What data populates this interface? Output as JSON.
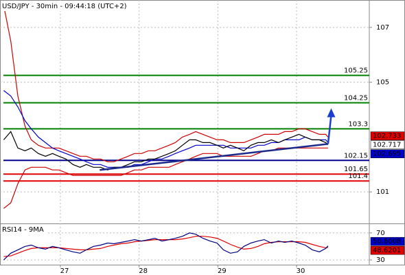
{
  "chart_data": [
    {
      "type": "line",
      "title": "USD/JPY - 30min - 09:44:18 (UTC+2)",
      "x": [
        26.28,
        26.37,
        26.46,
        26.55,
        26.63,
        26.72,
        26.81,
        26.9,
        26.98,
        27.07,
        27.16,
        27.25,
        27.33,
        27.42,
        27.51,
        27.6,
        27.68,
        27.77,
        27.86,
        27.94,
        28.03,
        28.12,
        28.2,
        28.29,
        28.38,
        28.46,
        28.55,
        28.64,
        28.72,
        28.81,
        28.9,
        28.99,
        29.07,
        29.16,
        29.25,
        29.33,
        29.42,
        29.51,
        29.59,
        29.68,
        29.77,
        29.85,
        29.94,
        30.03,
        30.11,
        30.2,
        30.29,
        30.37,
        30.4
      ],
      "series": [
        {
          "color": "#cc0000",
          "values": [
            107.8,
            106.5,
            104.5,
            103.4,
            102.9,
            102.7,
            102.6,
            102.6,
            102.6,
            102.5,
            102.4,
            102.3,
            102.3,
            102.2,
            102.2,
            102.1,
            102.1,
            102.2,
            102.3,
            102.4,
            102.4,
            102.5,
            102.5,
            102.6,
            102.7,
            102.8,
            103.0,
            103.1,
            103.2,
            103.1,
            103.0,
            102.9,
            102.9,
            102.8,
            102.8,
            102.8,
            102.9,
            103.0,
            103.1,
            103.1,
            103.1,
            103.2,
            103.2,
            103.3,
            103.3,
            103.2,
            103.1,
            103.1,
            103.0
          ]
        },
        {
          "color": "#cc0000",
          "values": [
            100.4,
            100.6,
            101.3,
            101.8,
            101.9,
            101.9,
            101.9,
            101.8,
            101.8,
            101.7,
            101.6,
            101.6,
            101.6,
            101.6,
            101.6,
            101.6,
            101.6,
            101.6,
            101.7,
            101.8,
            101.8,
            101.9,
            101.9,
            101.9,
            101.9,
            102.0,
            102.1,
            102.2,
            102.3,
            102.4,
            102.4,
            102.4,
            102.3,
            102.3,
            102.3,
            102.3,
            102.3,
            102.4,
            102.5,
            102.5,
            102.6,
            102.6,
            102.6,
            102.6,
            102.6,
            102.6,
            102.6,
            102.6,
            102.6
          ]
        },
        {
          "color": "#0000cc",
          "values": [
            104.7,
            104.5,
            104.1,
            103.6,
            103.3,
            103.0,
            102.8,
            102.6,
            102.5,
            102.4,
            102.3,
            102.2,
            102.1,
            102.0,
            102.0,
            101.9,
            101.9,
            101.9,
            101.9,
            102.0,
            102.0,
            102.1,
            102.2,
            102.2,
            102.3,
            102.4,
            102.5,
            102.6,
            102.7,
            102.7,
            102.7,
            102.7,
            102.7,
            102.6,
            102.6,
            102.6,
            102.6,
            102.7,
            102.7,
            102.8,
            102.8,
            102.9,
            102.9,
            102.9,
            103.0,
            102.9,
            102.9,
            102.9,
            102.8
          ]
        },
        {
          "color": "#000000",
          "values": [
            102.9,
            103.2,
            102.6,
            102.5,
            102.6,
            102.4,
            102.3,
            102.4,
            102.3,
            102.2,
            102.0,
            101.9,
            102.0,
            101.9,
            101.9,
            101.8,
            101.9,
            101.9,
            102.0,
            102.1,
            102.1,
            102.2,
            102.2,
            102.3,
            102.4,
            102.5,
            102.7,
            102.9,
            102.9,
            102.8,
            102.8,
            102.7,
            102.6,
            102.7,
            102.6,
            102.5,
            102.7,
            102.8,
            102.8,
            102.9,
            102.8,
            102.9,
            103.0,
            103.1,
            103.0,
            102.9,
            102.9,
            102.8,
            102.72
          ]
        }
      ],
      "xlim": [
        26.233,
        30.924
      ],
      "xticks": [
        27,
        28,
        29,
        30
      ],
      "ylim": [
        99.85,
        108
      ],
      "yticks": [
        101,
        105,
        107
      ],
      "grid": true,
      "levels": [
        {
          "value": 105.25,
          "color": "#008000"
        },
        {
          "value": 104.25,
          "color": "#008000"
        },
        {
          "value": 103.3,
          "color": "#008000"
        },
        {
          "value": 102.15,
          "color": "#00008b"
        },
        {
          "value": 101.65,
          "color": "#e00000"
        },
        {
          "value": 101.4,
          "color": "#e00000"
        }
      ],
      "trendlines": [
        {
          "x": [
            27.5,
            30.4
          ],
          "y": [
            101.8,
            102.75
          ],
          "color": "#1c2a8c"
        }
      ],
      "arrows": [
        {
          "x": [
            30.4,
            30.44
          ],
          "y": [
            102.75,
            104.05
          ],
          "color": "#1a3fcf"
        }
      ],
      "tags": [
        {
          "value": 102.733,
          "color": "#e00000",
          "text_color": "#5a0000"
        },
        {
          "value": 102.717,
          "color": "#ffffff",
          "text_color": "#000000"
        },
        {
          "value": 102.695,
          "color": "#0000cc",
          "text_color": "#ffffff"
        }
      ]
    },
    {
      "type": "line",
      "title": "RSI14 - 9MA",
      "x": [
        26.28,
        26.37,
        26.46,
        26.55,
        26.63,
        26.72,
        26.81,
        26.9,
        26.98,
        27.07,
        27.16,
        27.25,
        27.33,
        27.42,
        27.51,
        27.6,
        27.68,
        27.77,
        27.86,
        27.94,
        28.03,
        28.12,
        28.2,
        28.29,
        28.38,
        28.46,
        28.55,
        28.64,
        28.72,
        28.81,
        28.9,
        28.99,
        29.07,
        29.16,
        29.25,
        29.33,
        29.42,
        29.51,
        29.59,
        29.68,
        29.77,
        29.85,
        29.94,
        30.03,
        30.11,
        30.2,
        30.29,
        30.37,
        30.4
      ],
      "series": [
        {
          "color": "#e00000",
          "values": [
            35,
            36,
            40,
            44,
            47,
            48,
            48,
            48,
            48,
            47,
            46,
            45,
            45,
            46,
            47,
            50,
            52,
            54,
            55,
            57,
            58,
            59,
            60,
            60,
            60,
            60,
            61,
            63,
            65,
            65,
            64,
            62,
            58,
            53,
            49,
            46,
            47,
            50,
            54,
            56,
            57,
            57,
            57,
            57,
            56,
            53,
            50,
            48,
            48.6201
          ]
        },
        {
          "color": "#000080",
          "values": [
            30,
            40,
            45,
            50,
            52,
            48,
            46,
            50,
            48,
            45,
            42,
            40,
            45,
            50,
            52,
            55,
            54,
            56,
            58,
            60,
            58,
            60,
            62,
            58,
            60,
            62,
            65,
            70,
            68,
            62,
            58,
            55,
            45,
            40,
            42,
            50,
            55,
            58,
            60,
            55,
            58,
            56,
            58,
            55,
            52,
            45,
            42,
            47,
            50.8008
          ]
        }
      ],
      "xlim": [
        26.233,
        30.924
      ],
      "xticks": [
        27,
        28,
        29,
        30
      ],
      "ylim": [
        23,
        84
      ],
      "yticks": [
        30,
        70
      ],
      "grid": true,
      "tags": [
        {
          "value": 50.8008,
          "color": "#0000cc",
          "text_color": "#ffffff"
        },
        {
          "value": 48.6201,
          "color": "#e00000",
          "text_color": "#000000"
        }
      ]
    }
  ]
}
